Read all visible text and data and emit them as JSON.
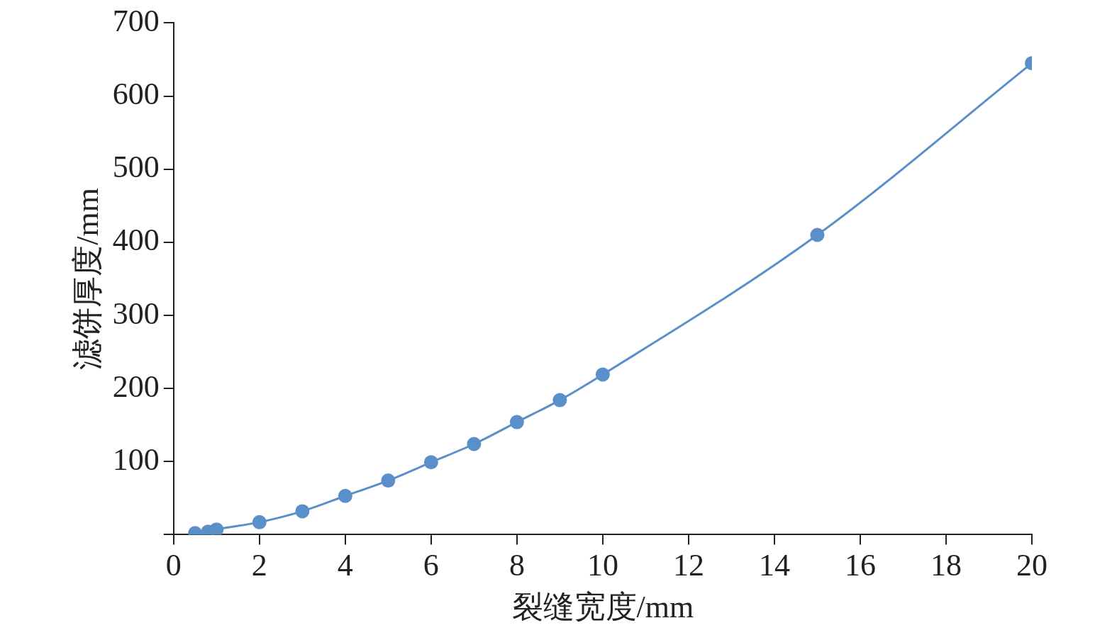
{
  "chart_data": {
    "type": "line",
    "xlabel": "裂缝宽度/mm",
    "ylabel": "滤饼厚度/mm",
    "series": [
      {
        "color": "#5b8fc9",
        "x": [
          0.5,
          0.8,
          1,
          2,
          3,
          4,
          5,
          6,
          7,
          8,
          9,
          10,
          15,
          20
        ],
        "values": [
          2,
          4,
          7,
          17,
          32,
          53,
          74,
          99,
          124,
          154,
          184,
          219,
          410,
          645
        ]
      }
    ],
    "xlim": [
      0,
      20
    ],
    "xticks": [
      0,
      2,
      4,
      6,
      8,
      10,
      12,
      14,
      16,
      18,
      20
    ],
    "ylim": [
      0,
      700
    ],
    "yticks": [
      {
        "value": 0,
        "label": null
      },
      100,
      200,
      300,
      400,
      500,
      600,
      700
    ],
    "grid": false,
    "legend": false,
    "marker": "circle",
    "line_style": "solid"
  }
}
